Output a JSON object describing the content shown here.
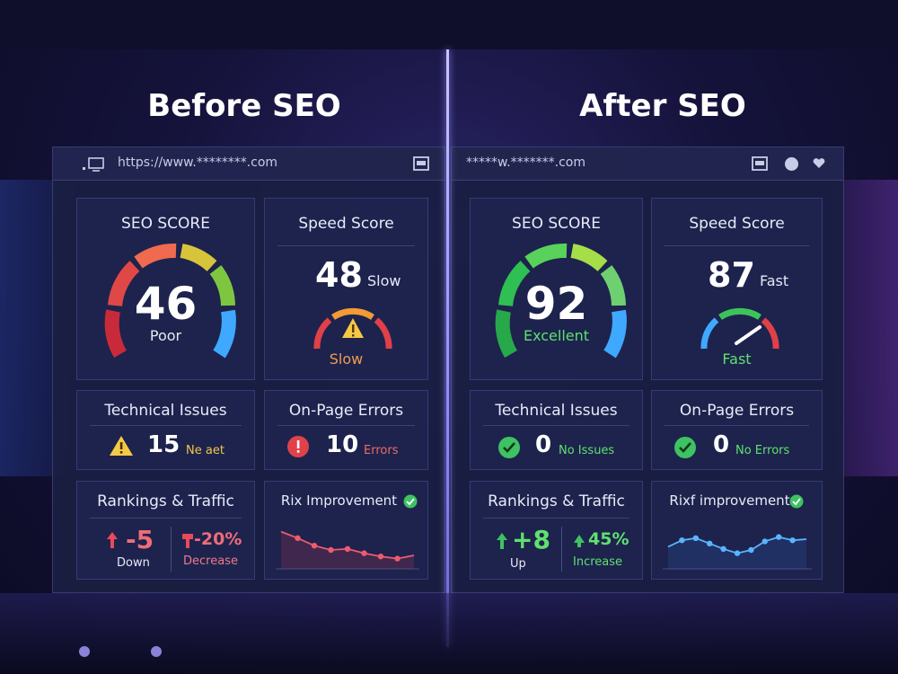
{
  "before": {
    "heading": "Before SEO",
    "url": "https://www.********.com",
    "seo_score": {
      "title": "SEO SCORE",
      "value": "46",
      "label": "Poor",
      "level": 0.46
    },
    "speed_score": {
      "title": "Speed Score",
      "value": "48",
      "suffix": "Slow",
      "label": "Slow"
    },
    "technical_issues": {
      "title": "Technical Issues",
      "value": "15",
      "label": "Ne aet"
    },
    "onpage_errors": {
      "title": "On-Page Errors",
      "value": "10",
      "label": "Errors"
    },
    "rankings": {
      "title": "Rankings & Traffic",
      "rank_value": "-5",
      "rank_label": "Down",
      "traffic_value": "-20%",
      "traffic_label": "Decrease"
    },
    "improvement": {
      "title": "Rix Improvement",
      "chart_data": {
        "type": "line",
        "values": [
          5.2,
          4.6,
          3.9,
          3.5,
          3.6,
          3.2,
          2.9,
          2.7,
          3.0
        ]
      }
    }
  },
  "after": {
    "heading": "After SEO",
    "url": "*****w.*******.com",
    "seo_score": {
      "title": "SEO SCORE",
      "value": "92",
      "label": "Excellent",
      "level": 0.92
    },
    "speed_score": {
      "title": "Speed Score",
      "value": "87",
      "suffix": "Fast",
      "label": "Fast"
    },
    "technical_issues": {
      "title": "Technical Issues",
      "value": "0",
      "label": "No Issues"
    },
    "onpage_errors": {
      "title": "On-Page Errors",
      "value": "0",
      "label": "No Errors"
    },
    "rankings": {
      "title": "Rankings & Traffic",
      "rank_value": "+8",
      "rank_label": "Up",
      "traffic_value": "45%",
      "traffic_label": "Increase"
    },
    "improvement": {
      "title": "Rixf improvement",
      "chart_data": {
        "type": "line",
        "values": [
          3.8,
          4.4,
          4.6,
          4.1,
          3.6,
          3.2,
          3.5,
          4.3,
          4.7,
          4.4,
          4.5
        ]
      }
    }
  },
  "colors": {
    "poor": "#e0424a",
    "good": "#3ed36b",
    "accent_blue": "#3fa8ff"
  }
}
